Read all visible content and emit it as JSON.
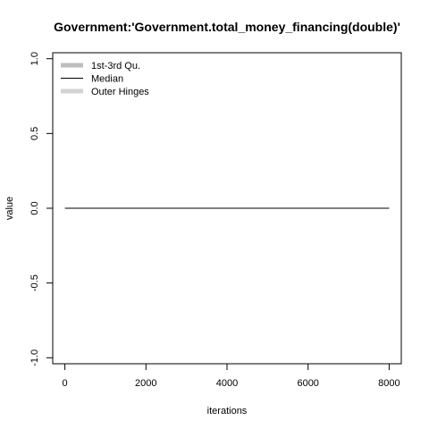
{
  "chart_data": {
    "type": "line",
    "title": "Government:'Government.total_money_financing(double)'",
    "xlabel": "iterations",
    "ylabel": "value",
    "xlim": [
      -300,
      8300
    ],
    "ylim": [
      -1.04,
      1.04
    ],
    "x_ticks": [
      0,
      2000,
      4000,
      6000,
      8000
    ],
    "x_tick_labels": [
      "0",
      "2000",
      "4000",
      "6000",
      "8000"
    ],
    "y_ticks": [
      -1.0,
      -0.5,
      0.0,
      0.5,
      1.0
    ],
    "y_tick_labels": [
      "-1.0",
      "-0.5",
      "0.0",
      "0.5",
      "1.0"
    ],
    "legend": {
      "position": "top-left",
      "entries": [
        {
          "label": "1st-3rd Qu.",
          "color": "#bebebe",
          "style": "thick"
        },
        {
          "label": "Median",
          "color": "#000000",
          "style": "thin"
        },
        {
          "label": "Outer Hinges",
          "color": "#d3d3d3",
          "style": "thick"
        }
      ]
    },
    "series": [
      {
        "name": "Median",
        "color": "#000000",
        "x": [
          0,
          8000
        ],
        "values": [
          0.0,
          0.0
        ]
      }
    ]
  }
}
